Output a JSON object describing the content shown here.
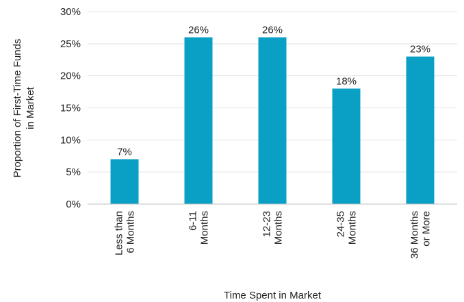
{
  "chart_data": {
    "type": "bar",
    "categories": [
      [
        "Less than",
        "6 Months"
      ],
      [
        "6-11",
        "Months"
      ],
      [
        "12-23",
        "Months"
      ],
      [
        "24-35",
        "Months"
      ],
      [
        "36 Months",
        "or More"
      ]
    ],
    "values": [
      7,
      26,
      26,
      18,
      23
    ],
    "data_labels": [
      "7%",
      "26%",
      "26%",
      "18%",
      "23%"
    ],
    "xlabel": "Time Spent in Market",
    "ylabel": [
      "Proportion of First-Time Funds",
      "in Market"
    ],
    "ylim": [
      0,
      30
    ],
    "yticks": [
      0,
      5,
      10,
      15,
      20,
      25,
      30
    ],
    "ytick_labels": [
      "0%",
      "5%",
      "10%",
      "15%",
      "20%",
      "25%",
      "30%"
    ],
    "bar_color": "#0aa0c6",
    "grid": true,
    "grid_color": "#e3e3e3",
    "legend": "none"
  }
}
